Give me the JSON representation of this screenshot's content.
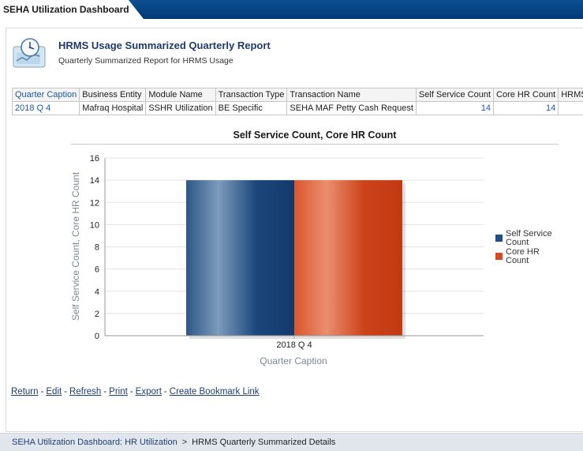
{
  "app": {
    "tab_title": "SEHA Utilization Dashboard"
  },
  "report": {
    "title": "HRMS Usage Summarized Quarterly Report",
    "subtitle": "Quarterly Summarized Report for HRMS Usage"
  },
  "table": {
    "headers": [
      "Quarter Caption",
      "Business Entity",
      "Module Name",
      "Transaction Type",
      "Transaction Name",
      "Self Service Count",
      "Core HR Count",
      "HRMS Usage"
    ],
    "rows": [
      [
        "2018 Q 4",
        "Mafraq Hospital",
        "SSHR Utilization",
        "BE Specific",
        "SEHA MAF Petty Cash Request",
        "14",
        "14",
        ""
      ]
    ]
  },
  "chart_data": {
    "type": "bar",
    "title": "Self Service Count, Core HR Count",
    "xlabel": "Quarter Caption",
    "ylabel": "Self Service Count, Core HR Count",
    "categories": [
      "2018 Q 4"
    ],
    "series": [
      {
        "name": "Self Service Count",
        "values": [
          14
        ],
        "color": "#1f4f86"
      },
      {
        "name": "Core HR Count",
        "values": [
          14
        ],
        "color": "#d24a24"
      }
    ],
    "ylim": [
      0,
      16
    ],
    "yticks": [
      0,
      2,
      4,
      6,
      8,
      10,
      12,
      14,
      16
    ],
    "grid": true,
    "legend": "right"
  },
  "actions": {
    "links": [
      "Return",
      "Edit",
      "Refresh",
      "Print",
      "Export",
      "Create Bookmark Link"
    ]
  },
  "breadcrumb": {
    "parent": "SEHA Utilization Dashboard: HR Utilization",
    "separator": ">",
    "current": "HRMS Quarterly Summarized Details"
  }
}
